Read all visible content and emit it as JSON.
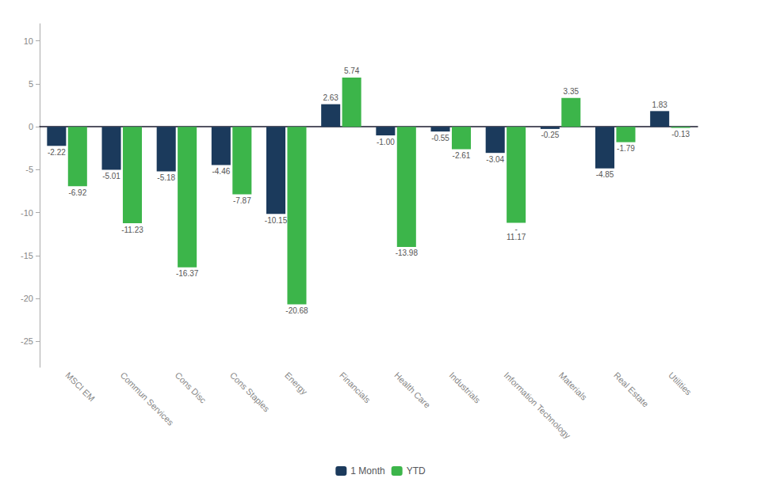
{
  "chart_data": {
    "type": "bar",
    "categories": [
      "MSCI EM",
      "Commun Services",
      "Cons Disc",
      "Cons Staples",
      "Energy",
      "Financials",
      "Health Care",
      "Industrials",
      "Information Technology",
      "Materials",
      "Real Estate",
      "Utilities"
    ],
    "series": [
      {
        "name": "1 Month",
        "color": "#1b3a5c",
        "values": [
          -2.22,
          -5.01,
          -5.18,
          -4.46,
          -10.15,
          2.63,
          -1.0,
          -0.55,
          -3.04,
          -0.25,
          -4.85,
          1.83
        ],
        "value_labels": [
          "-2.22",
          "-5.01",
          "-5.18",
          "-4.46",
          "-10.15",
          "2.63",
          "-1.00",
          "-0.55",
          "-3.04",
          "-0.25",
          "-4.85",
          "1.83"
        ]
      },
      {
        "name": "YTD",
        "color": "#3cb54a",
        "values": [
          -6.92,
          -11.23,
          -16.37,
          -7.87,
          -20.68,
          5.74,
          -13.98,
          -2.61,
          -11.17,
          3.35,
          -1.79,
          -0.13
        ],
        "value_labels": [
          "-6.92",
          "-11.23",
          "-16.37",
          "-7.87",
          "-20.68",
          "5.74",
          "-13.98",
          "-2.61",
          "-\n11.17",
          "3.35",
          "-1.79",
          "-0.13"
        ]
      }
    ],
    "ylim": [
      -28,
      12
    ],
    "yticks": [
      10,
      5,
      0,
      -5,
      -10,
      -15,
      -20,
      -25
    ],
    "data_labels": true,
    "legend": "bottom",
    "grid": false
  }
}
